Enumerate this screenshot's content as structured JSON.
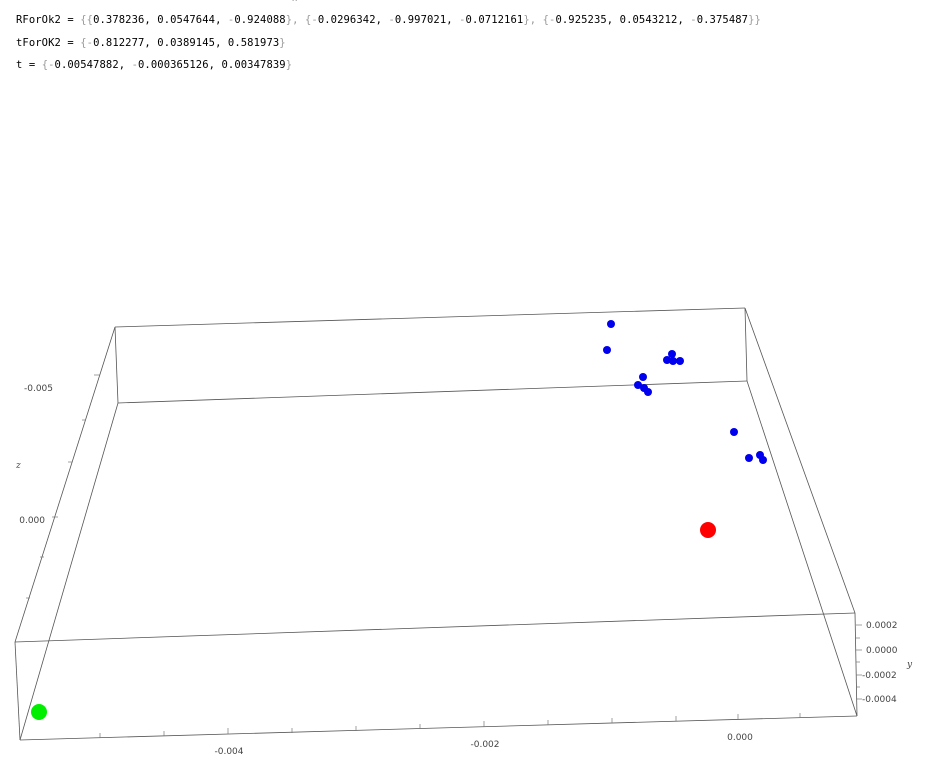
{
  "notebook": {
    "close_mark": "x",
    "lines": [
      {
        "name": "RForOk2",
        "equals": " = ",
        "pieces": [
          {
            "t": "{{",
            "c": "br"
          },
          {
            "t": "0.378236, 0.0547644, ",
            "c": ""
          },
          {
            "t": "-",
            "c": "neg"
          },
          {
            "t": "0.924088",
            "c": ""
          },
          {
            "t": "}, {",
            "c": "br"
          },
          {
            "t": "-",
            "c": "neg"
          },
          {
            "t": "0.0296342, ",
            "c": ""
          },
          {
            "t": "-",
            "c": "neg"
          },
          {
            "t": "0.997021, ",
            "c": ""
          },
          {
            "t": "-",
            "c": "neg"
          },
          {
            "t": "0.0712161",
            "c": ""
          },
          {
            "t": "}, {",
            "c": "br"
          },
          {
            "t": "-",
            "c": "neg"
          },
          {
            "t": "0.925235, 0.0543212, ",
            "c": ""
          },
          {
            "t": "-",
            "c": "neg"
          },
          {
            "t": "0.375487",
            "c": ""
          },
          {
            "t": "}}",
            "c": "br"
          }
        ]
      },
      {
        "name": "tForOK2",
        "equals": " = ",
        "pieces": [
          {
            "t": "{",
            "c": "br"
          },
          {
            "t": "-",
            "c": "neg"
          },
          {
            "t": "0.812277, 0.0389145, 0.581973",
            "c": ""
          },
          {
            "t": "}",
            "c": "br"
          }
        ]
      },
      {
        "name": "t",
        "equals": " = ",
        "pieces": [
          {
            "t": "{",
            "c": "br"
          },
          {
            "t": "-",
            "c": "neg"
          },
          {
            "t": "0.00547882, ",
            "c": ""
          },
          {
            "t": "-",
            "c": "neg"
          },
          {
            "t": "0.000365126, 0.00347839",
            "c": ""
          },
          {
            "t": "}",
            "c": "br"
          }
        ]
      }
    ]
  },
  "plot": {
    "axes": {
      "x_ticks": [
        "-0.004",
        "-0.002",
        "0.000"
      ],
      "y_ticks": [
        "0.0002",
        "0.0000",
        "-0.0002",
        "-0.0004"
      ],
      "z_ticks": [
        "-0.005",
        "0.000"
      ],
      "y_label": "y",
      "z_label": "z"
    },
    "colors": {
      "box": "#555555",
      "points": "#0000ee",
      "red_point": "#ff0000",
      "green_point": "#00ee00"
    }
  }
}
